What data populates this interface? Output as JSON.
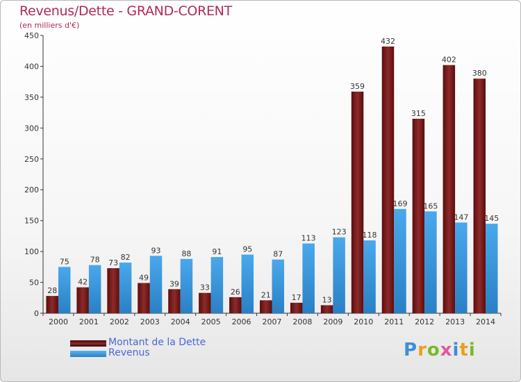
{
  "title": "Revenus/Dette - GRAND-CORENT",
  "subtitle": "(en milliers d'€)",
  "logo": {
    "text": "Proxiti"
  },
  "colors": {
    "dette": "#7a1a1a",
    "revenus": "#3d9ee0",
    "title": "#b0285a"
  },
  "chart_data": {
    "type": "bar",
    "categories": [
      "2000",
      "2001",
      "2002",
      "2003",
      "2004",
      "2005",
      "2006",
      "2007",
      "2008",
      "2009",
      "2010",
      "2011",
      "2012",
      "2013",
      "2014"
    ],
    "series": [
      {
        "name": "Montant de la Dette",
        "values": [
          28,
          42,
          73,
          49,
          39,
          33,
          26,
          21,
          17,
          13,
          359,
          432,
          315,
          402,
          380
        ]
      },
      {
        "name": "Revenus",
        "values": [
          75,
          78,
          82,
          93,
          88,
          91,
          95,
          87,
          113,
          123,
          118,
          169,
          165,
          147,
          145
        ]
      }
    ],
    "yticks": [
      0,
      50,
      100,
      150,
      200,
      250,
      300,
      350,
      400,
      450
    ],
    "ylim": [
      0,
      450
    ],
    "grid": false,
    "legend_position": "bottom-left"
  }
}
